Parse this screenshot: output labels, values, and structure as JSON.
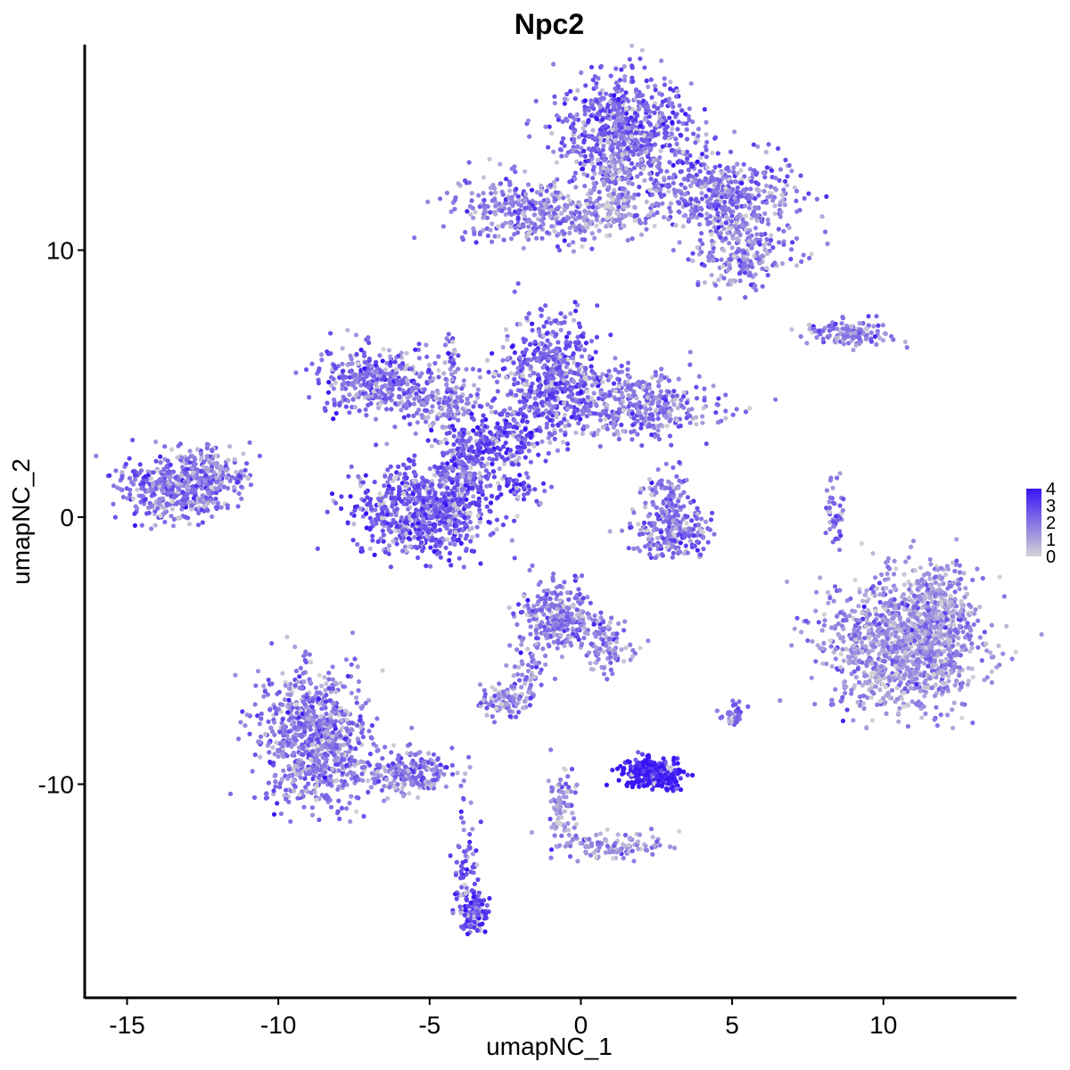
{
  "chart_data": {
    "type": "scatter",
    "title": "Npc2",
    "xlabel": "umapNC_1",
    "ylabel": "umapNC_2",
    "xlim": [
      -16.4,
      14.4
    ],
    "ylim": [
      -18.0,
      17.7
    ],
    "x_ticks": [
      -15,
      -10,
      -5,
      0,
      5,
      10
    ],
    "x_tick_labels": [
      "-15",
      "-10",
      "-5",
      "0",
      "5",
      "10"
    ],
    "y_ticks": [
      -10,
      0,
      10
    ],
    "y_tick_labels": [
      "-10",
      "0",
      "10"
    ],
    "grid": false,
    "legend_position": "right",
    "color_scale": {
      "low_color": "#d3d3d3",
      "high_color": "#3b14f5",
      "min": 0,
      "max": 4,
      "ticks": [
        0,
        1,
        2,
        3,
        4
      ],
      "tick_labels": [
        "0",
        "1",
        "2",
        "3",
        "4"
      ]
    },
    "clusters": [
      {
        "name": "top-large",
        "cx": 1.4,
        "cy": 14.5,
        "sx": 1.1,
        "sy": 1.0,
        "n": 700,
        "expr": 2.4
      },
      {
        "name": "top-right-arm",
        "cx": 4.4,
        "cy": 12.2,
        "sx": 1.3,
        "sy": 0.7,
        "n": 450,
        "expr": 2.2
      },
      {
        "name": "top-right-lobe",
        "cx": 5.3,
        "cy": 10.0,
        "sx": 0.8,
        "sy": 0.7,
        "n": 250,
        "expr": 1.9
      },
      {
        "name": "top-left-arm",
        "cx": -1.8,
        "cy": 11.5,
        "sx": 1.2,
        "sy": 0.6,
        "n": 300,
        "expr": 1.9
      },
      {
        "name": "top-bridge",
        "cx": 0.8,
        "cy": 11.3,
        "sx": 0.9,
        "sy": 0.4,
        "n": 120,
        "expr": 1.5
      },
      {
        "name": "top-stem",
        "cx": 1.1,
        "cy": 12.6,
        "sx": 0.4,
        "sy": 0.8,
        "n": 120,
        "expr": 1.4
      },
      {
        "name": "center-upper-right",
        "cx": -1.0,
        "cy": 5.3,
        "sx": 0.8,
        "sy": 1.1,
        "n": 550,
        "expr": 2.5
      },
      {
        "name": "center-right-arm",
        "cx": 1.8,
        "cy": 4.2,
        "sx": 1.3,
        "sy": 0.6,
        "n": 400,
        "expr": 2.1
      },
      {
        "name": "center-left-arm",
        "cx": -6.7,
        "cy": 5.1,
        "sx": 1.0,
        "sy": 0.6,
        "n": 350,
        "expr": 2.3
      },
      {
        "name": "center-left-link",
        "cx": -4.6,
        "cy": 4.3,
        "sx": 0.7,
        "sy": 0.5,
        "n": 130,
        "expr": 1.7
      },
      {
        "name": "center-hub",
        "cx": -3.0,
        "cy": 2.8,
        "sx": 0.8,
        "sy": 0.6,
        "n": 250,
        "expr": 2.8
      },
      {
        "name": "center-neck",
        "cx": -4.0,
        "cy": 1.4,
        "sx": 0.5,
        "sy": 0.8,
        "n": 200,
        "expr": 2.5
      },
      {
        "name": "center-bulb",
        "cx": -5.3,
        "cy": 0.2,
        "sx": 1.1,
        "sy": 0.8,
        "n": 650,
        "expr": 2.7
      },
      {
        "name": "center-spike",
        "cx": -4.3,
        "cy": 5.6,
        "sx": 0.15,
        "sy": 0.8,
        "n": 40,
        "expr": 2.3
      },
      {
        "name": "center-diagonal",
        "cx": -2.1,
        "cy": 1.2,
        "sx": 0.5,
        "sy": 0.3,
        "n": 50,
        "expr": 3.0
      },
      {
        "name": "left-blob",
        "cx": -13.4,
        "cy": 1.1,
        "sx": 0.9,
        "sy": 0.6,
        "n": 450,
        "expr": 2.2
      },
      {
        "name": "left-blob-arm",
        "cx": -12.1,
        "cy": 1.6,
        "sx": 0.6,
        "sy": 0.5,
        "n": 120,
        "expr": 1.8
      },
      {
        "name": "small-mid-cluster",
        "cx": 3.0,
        "cy": -0.5,
        "sx": 0.7,
        "sy": 0.5,
        "n": 220,
        "expr": 2.3
      },
      {
        "name": "small-mid-upper",
        "cx": 2.9,
        "cy": 0.8,
        "sx": 0.35,
        "sy": 0.5,
        "n": 80,
        "expr": 2.0
      },
      {
        "name": "right-large",
        "cx": 10.6,
        "cy": -4.8,
        "sx": 1.3,
        "sy": 1.2,
        "n": 1100,
        "expr": 1.5
      },
      {
        "name": "right-upper-right",
        "cx": 11.8,
        "cy": -3.4,
        "sx": 0.6,
        "sy": 0.8,
        "n": 250,
        "expr": 1.5
      },
      {
        "name": "right-thin",
        "cx": 8.4,
        "cy": 0.2,
        "sx": 0.15,
        "sy": 0.6,
        "n": 50,
        "expr": 2.0
      },
      {
        "name": "right-top-strip",
        "cx": 8.8,
        "cy": 6.9,
        "sx": 0.7,
        "sy": 0.25,
        "n": 130,
        "expr": 2.0
      },
      {
        "name": "lower-left-large",
        "cx": -8.8,
        "cy": -8.3,
        "sx": 0.9,
        "sy": 1.2,
        "n": 800,
        "expr": 2.0
      },
      {
        "name": "lower-left-tail",
        "cx": -5.8,
        "cy": -9.6,
        "sx": 0.8,
        "sy": 0.4,
        "n": 220,
        "expr": 2.0
      },
      {
        "name": "lower-left-stalk",
        "cx": -3.8,
        "cy": -12.8,
        "sx": 0.2,
        "sy": 1.0,
        "n": 60,
        "expr": 2.5
      },
      {
        "name": "lower-left-foot",
        "cx": -3.5,
        "cy": -14.8,
        "sx": 0.25,
        "sy": 0.4,
        "n": 120,
        "expr": 3.1
      },
      {
        "name": "lower-center",
        "cx": -0.8,
        "cy": -3.7,
        "sx": 0.6,
        "sy": 0.6,
        "n": 300,
        "expr": 2.0
      },
      {
        "name": "lower-center-right",
        "cx": 0.8,
        "cy": -4.8,
        "sx": 0.4,
        "sy": 0.5,
        "n": 100,
        "expr": 1.8
      },
      {
        "name": "lower-center-arm",
        "cx": -1.7,
        "cy": -5.8,
        "sx": 0.3,
        "sy": 0.6,
        "n": 60,
        "expr": 1.7
      },
      {
        "name": "lower-center-nub",
        "cx": -2.5,
        "cy": -6.9,
        "sx": 0.4,
        "sy": 0.3,
        "n": 90,
        "expr": 2.0
      },
      {
        "name": "dark-cluster",
        "cx": 2.4,
        "cy": -9.6,
        "sx": 0.5,
        "sy": 0.25,
        "n": 320,
        "expr": 4.0
      },
      {
        "name": "bottom-stem",
        "cx": -0.6,
        "cy": -10.8,
        "sx": 0.25,
        "sy": 0.7,
        "n": 80,
        "expr": 1.4
      },
      {
        "name": "bottom-branch",
        "cx": 1.0,
        "cy": -12.3,
        "sx": 0.9,
        "sy": 0.25,
        "n": 110,
        "expr": 1.5
      },
      {
        "name": "small-right-dot",
        "cx": 5.0,
        "cy": -7.4,
        "sx": 0.2,
        "sy": 0.2,
        "n": 40,
        "expr": 2.2
      }
    ]
  }
}
